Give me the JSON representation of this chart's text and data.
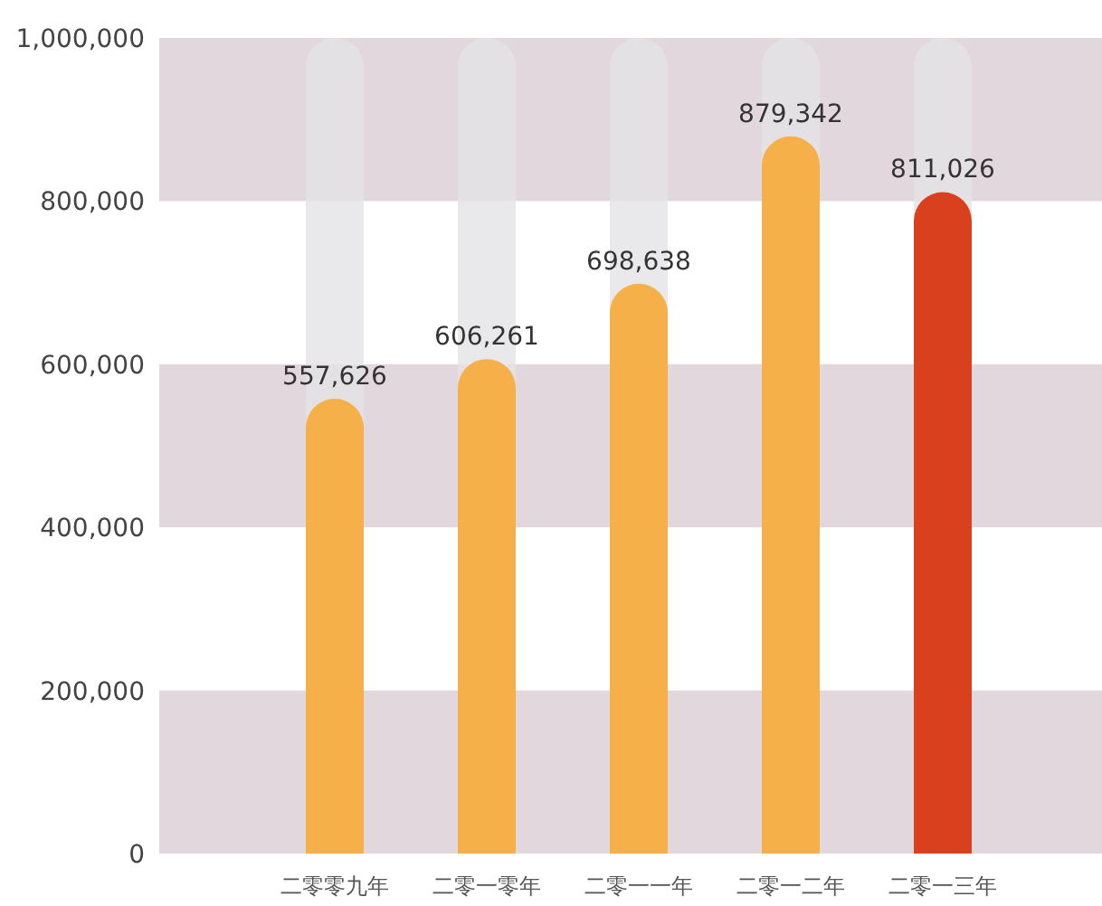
{
  "chart_data": {
    "type": "bar",
    "categories": [
      "二零零九年",
      "二零一零年",
      "二零一一年",
      "二零一二年",
      "二零一三年"
    ],
    "values": [
      557626,
      606261,
      698638,
      879342,
      811026
    ],
    "colors": [
      "#f5b04a",
      "#f5b04a",
      "#f5b04a",
      "#f5b04a",
      "#d8401e"
    ],
    "ylim": [
      0,
      1000000
    ],
    "yticks": [
      {
        "value": 0,
        "label": "0"
      },
      {
        "value": 200000,
        "label": "200,000"
      },
      {
        "value": 400000,
        "label": "400,000"
      },
      {
        "value": 600000,
        "label": "600,000"
      },
      {
        "value": 800000,
        "label": "800,000"
      },
      {
        "value": 1000000,
        "label": "1,000,000"
      }
    ],
    "bands": [
      {
        "axis": "y",
        "from": 0,
        "to": 200000,
        "color": "#e3d7de"
      },
      {
        "axis": "y",
        "from": 400000,
        "to": 600000,
        "color": "#e3d7de"
      },
      {
        "axis": "y",
        "from": 800000,
        "to": 1000000,
        "color": "#e3d7de"
      }
    ],
    "value_labels": [
      "557,626",
      "606,261",
      "698,638",
      "879,342",
      "811,026"
    ]
  }
}
